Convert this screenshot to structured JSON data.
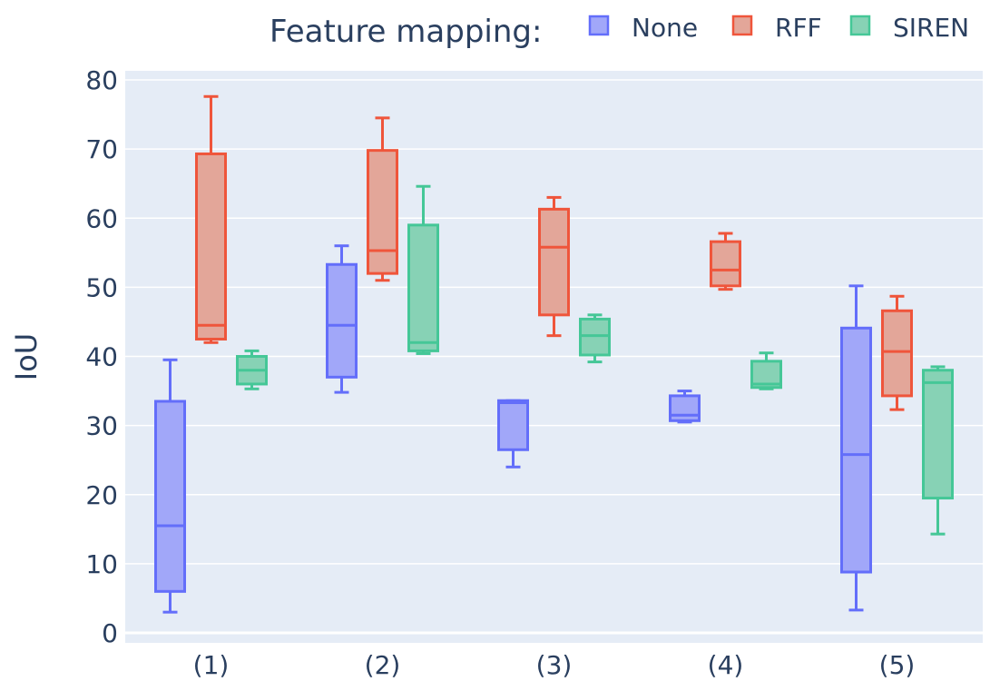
{
  "chart_data": {
    "type": "box",
    "legend": {
      "title": "Feature mapping:",
      "placement": "top-right",
      "orientation": "horizontal"
    },
    "ylabel": "IoU",
    "xlabel": "",
    "ylim": [
      0,
      80
    ],
    "yticks": [
      0,
      10,
      20,
      30,
      40,
      50,
      60,
      70,
      80
    ],
    "grid": true,
    "categories": [
      "(1)",
      "(2)",
      "(3)",
      "(4)",
      "(5)"
    ],
    "series": [
      {
        "name": "None",
        "line_color": "#636efa",
        "fill_color": "#a1a7f9",
        "boxes": [
          {
            "min": 3,
            "q1": 6,
            "median": 15.5,
            "q3": 33.5,
            "max": 39.5
          },
          {
            "min": 34.8,
            "q1": 37,
            "median": 44.5,
            "q3": 53.3,
            "max": 56
          },
          {
            "min": 24,
            "q1": 26.5,
            "median": 33.3,
            "q3": 33.6,
            "max": 33.6
          },
          {
            "min": 30.5,
            "q1": 30.7,
            "median": 31.5,
            "q3": 34.3,
            "max": 35
          },
          {
            "min": 3.3,
            "q1": 8.8,
            "median": 25.8,
            "q3": 44.1,
            "max": 50.2
          }
        ]
      },
      {
        "name": "RFF",
        "line_color": "#ef553b",
        "fill_color": "#e3a699",
        "boxes": [
          {
            "min": 42,
            "q1": 42.5,
            "median": 44.5,
            "q3": 69.3,
            "max": 77.6
          },
          {
            "min": 51,
            "q1": 52,
            "median": 55.3,
            "q3": 69.8,
            "max": 74.5
          },
          {
            "min": 43,
            "q1": 46,
            "median": 55.8,
            "q3": 61.3,
            "max": 63
          },
          {
            "min": 49.7,
            "q1": 50.2,
            "median": 52.5,
            "q3": 56.6,
            "max": 57.8
          },
          {
            "min": 32.3,
            "q1": 34.3,
            "median": 40.7,
            "q3": 46.6,
            "max": 48.7
          }
        ]
      },
      {
        "name": "SIREN",
        "line_color": "#45c797",
        "fill_color": "#87d2b5",
        "boxes": [
          {
            "min": 35.3,
            "q1": 36,
            "median": 38,
            "q3": 40,
            "max": 40.8
          },
          {
            "min": 40.4,
            "q1": 40.8,
            "median": 42,
            "q3": 59,
            "max": 64.6
          },
          {
            "min": 39.2,
            "q1": 40.2,
            "median": 43,
            "q3": 45.4,
            "max": 46
          },
          {
            "min": 35.3,
            "q1": 35.5,
            "median": 36,
            "q3": 39.3,
            "max": 40.5
          },
          {
            "min": 14.3,
            "q1": 19.5,
            "median": 36.2,
            "q3": 38,
            "max": 38.5
          }
        ]
      }
    ]
  }
}
